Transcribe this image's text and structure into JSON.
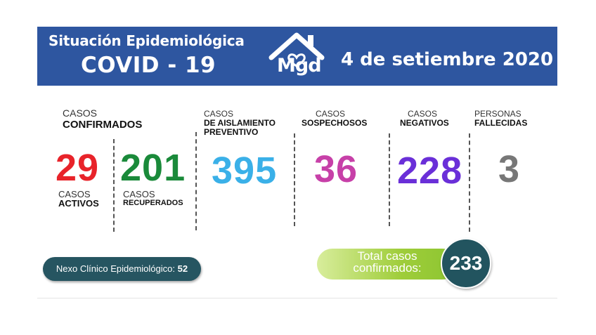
{
  "header": {
    "title_line1": "Situación Epidemiológica",
    "title_line2": "COVID - 19",
    "logo_text": "Mgd",
    "date": "4 de setiembre 2020"
  },
  "colors": {
    "header_bg": "#2e56a0",
    "activos": "#e8232a",
    "recuperados": "#1a8a3a",
    "aislamiento": "#3ab0e8",
    "sospechosos": "#c740a8",
    "negativos": "#6a2fd8",
    "fallecidas": "#777777",
    "nexo_bg": "#265561",
    "total_green": "#8cc531",
    "total_circle": "#22545f"
  },
  "confirmados": {
    "label_top": "CASOS",
    "label_bold": "CONFIRMADOS",
    "activos": {
      "value": "29",
      "label_top": "CASOS",
      "label_bold": "ACTIVOS"
    },
    "recuperados": {
      "value": "201",
      "label_top": "CASOS",
      "label_bold": "RECUPERADOS"
    }
  },
  "aislamiento": {
    "label_top": "CASOS",
    "label_bold1": "DE AISLAMIENTO",
    "label_bold2": "PREVENTIVO",
    "value": "395"
  },
  "sospechosos": {
    "label_top": "CASOS",
    "label_bold": "SOSPECHOSOS",
    "value": "36"
  },
  "negativos": {
    "label_top": "CASOS",
    "label_bold": "NEGATIVOS",
    "value": "228"
  },
  "fallecidas": {
    "label_top": "PERSONAS",
    "label_bold": "FALLECIDAS",
    "value": "3"
  },
  "nexo": {
    "label": "Nexo Clínico Epidemiológico:",
    "value": "52"
  },
  "total": {
    "line1": "Total casos",
    "line2": "confirmados:",
    "value": "233"
  }
}
